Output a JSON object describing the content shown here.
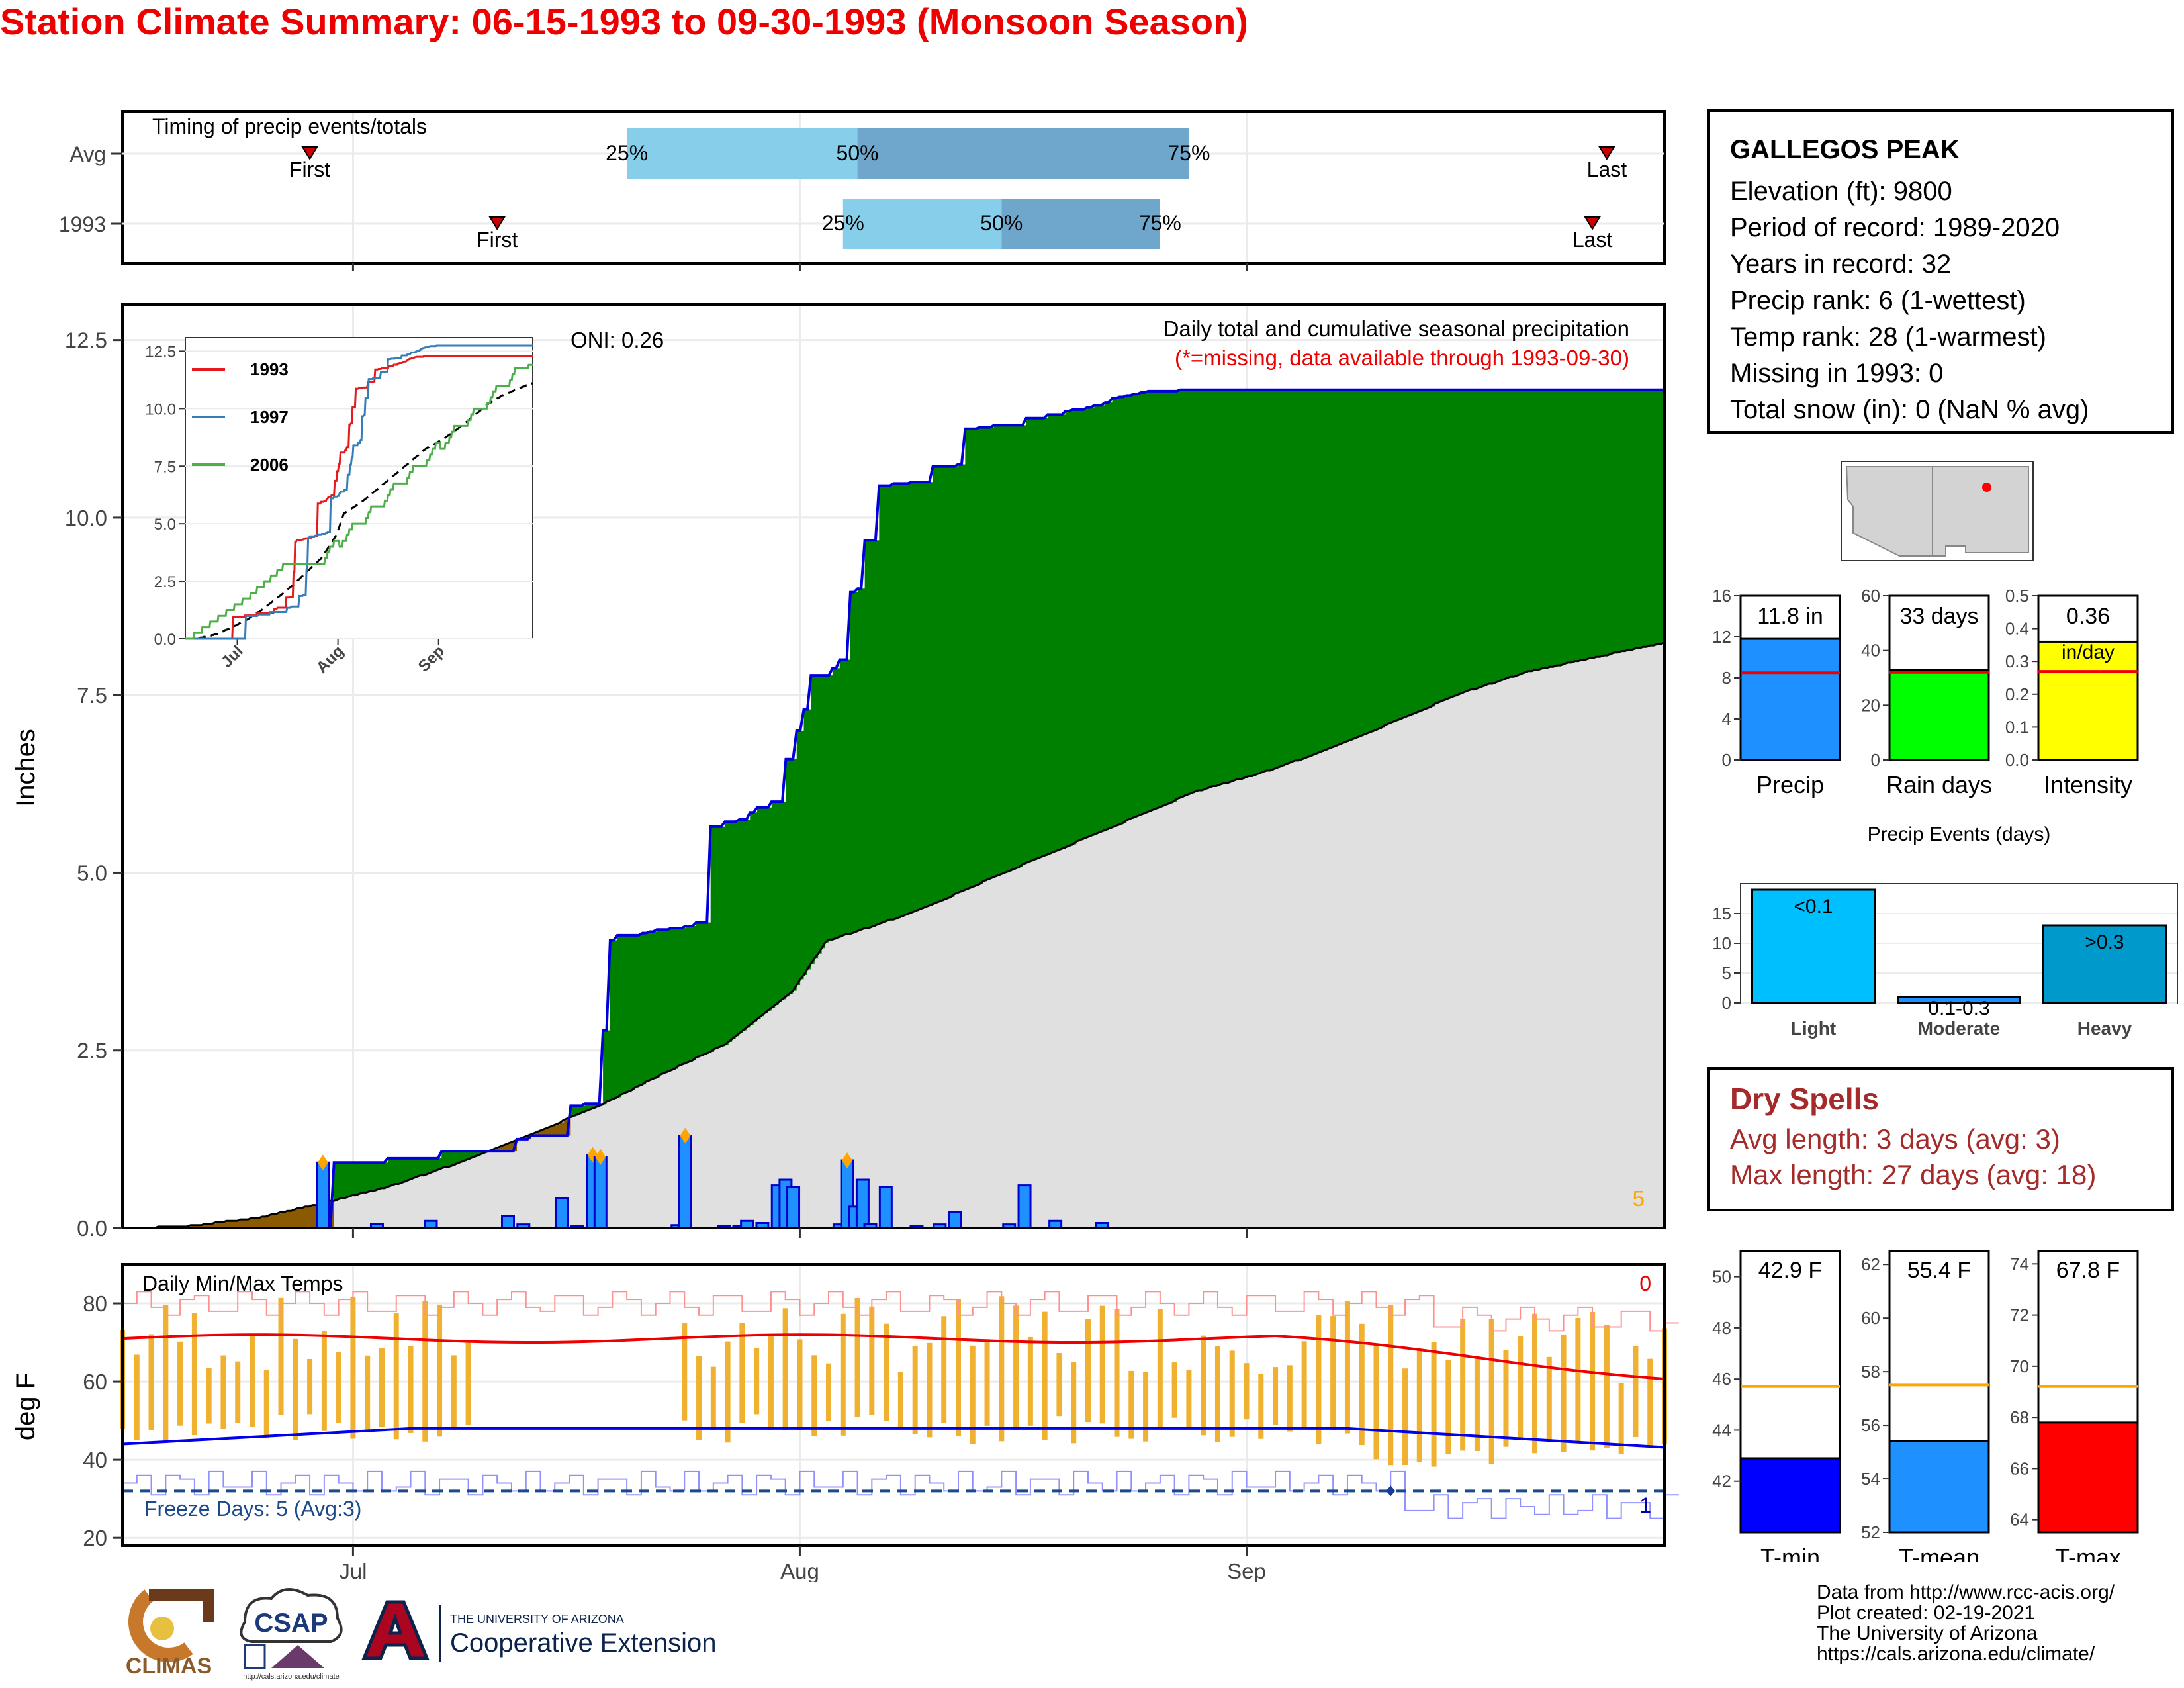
{
  "title": "Station Climate Summary: 06-15-1993 to 09-30-1993 (Monsoon Season)",
  "timing": {
    "label": "Timing of precip events/totals",
    "rows": [
      {
        "name": "Avg",
        "first_label": "First",
        "last_label": "Last",
        "p25": "25%",
        "p50": "50%",
        "p75": "75%",
        "first_date": "1993-06-28",
        "last_date": "1993-09-26",
        "q25_date": "1993-07-20",
        "q50_date": "1993-08-05",
        "q75_date": "1993-08-28"
      },
      {
        "name": "1993",
        "first_label": "First",
        "last_label": "Last",
        "p25": "25%",
        "p50": "50%",
        "p75": "75%",
        "first_date": "1993-07-11",
        "last_date": "1993-09-25",
        "q25_date": "1993-08-04",
        "q50_date": "1993-08-15",
        "q75_date": "1993-08-26"
      }
    ]
  },
  "main": {
    "ylabel": "Inches",
    "oni": "ONI: 0.26",
    "caption": "Daily total and cumulative seasonal precipitation",
    "missing_note": "(*=missing, data available through 1993-09-30)",
    "corner_value": "5",
    "y_ticks": [
      "0.0",
      "2.5",
      "5.0",
      "7.5",
      "10.0",
      "12.5"
    ],
    "x_ticks": [
      "Jul",
      "Aug",
      "Sep"
    ]
  },
  "temps": {
    "label": "Daily Min/Max Temps",
    "ylabel": "deg F",
    "freeze": "Freeze Days: 5 (Avg:3)",
    "corner_top": "0",
    "corner_bottom": "1",
    "y_ticks": [
      "20",
      "40",
      "60",
      "80"
    ],
    "x_ticks": [
      "Jul",
      "Aug",
      "Sep"
    ]
  },
  "inset": {
    "legend": [
      "1993",
      "1997",
      "2006"
    ],
    "y_ticks": [
      "0.0",
      "2.5",
      "5.0",
      "7.5",
      "10.0",
      "12.5"
    ],
    "x_ticks": [
      "Jul",
      "Aug",
      "Sep"
    ]
  },
  "station": {
    "name": "GALLEGOS PEAK",
    "lines": [
      "Elevation (ft): 9800",
      "Period of record: 1989-2020",
      "Years in record: 32",
      "Precip rank: 6 (1-wettest)",
      "Temp rank: 28 (1-warmest)",
      "Missing in 1993: 0",
      "Total snow (in): 0 (NaN % avg)"
    ]
  },
  "summary_bars": [
    {
      "name": "Precip",
      "label": "11.8 in",
      "value": 11.8,
      "avg": 8.5,
      "ymax": 16,
      "ticks": [
        "0",
        "4",
        "8",
        "12",
        "16"
      ],
      "color": "#1e90ff"
    },
    {
      "name": "Rain days",
      "label": "33 days",
      "value": 33,
      "avg": 32,
      "ymax": 60,
      "ticks": [
        "0",
        "20",
        "40",
        "60"
      ],
      "color": "#00ff00"
    },
    {
      "name": "Intensity",
      "label": "0.36",
      "label2": "in/day",
      "value": 0.36,
      "avg": 0.27,
      "ymax": 0.5,
      "ticks": [
        "0.0",
        "0.1",
        "0.2",
        "0.3",
        "0.4",
        "0.5"
      ],
      "color": "#ffff00"
    }
  ],
  "events": {
    "title": "Precip Events (days)",
    "categories": [
      "Light",
      "Moderate",
      "Heavy"
    ],
    "values": [
      19,
      1,
      13
    ],
    "labels": [
      "<0.1",
      "0.1-0.3",
      ">0.3"
    ],
    "colors": [
      "#00bfff",
      "#1e90ff",
      "#0099cc"
    ],
    "y_ticks": [
      "0",
      "5",
      "10",
      "15"
    ]
  },
  "dry": {
    "title": "Dry Spells",
    "avg": "Avg length: 3 days (avg: 3)",
    "max": "Max length: 27 days (avg: 18)"
  },
  "temp_bars": [
    {
      "name": "T-min",
      "label": "42.9 F",
      "value": 42.9,
      "avg": 45.7,
      "ymin": 40,
      "ymax": 51,
      "ticks": [
        "42",
        "44",
        "46",
        "48",
        "50"
      ],
      "color": "#0000ff"
    },
    {
      "name": "T-mean",
      "label": "55.4 F",
      "value": 55.4,
      "avg": 57.5,
      "ymin": 52,
      "ymax": 62.5,
      "ticks": [
        "52",
        "54",
        "56",
        "58",
        "60",
        "62"
      ],
      "color": "#1e90ff"
    },
    {
      "name": "T-max",
      "label": "67.8 F",
      "value": 67.8,
      "avg": 69.2,
      "ymin": 63.5,
      "ymax": 74.5,
      "ticks": [
        "64",
        "66",
        "68",
        "70",
        "72",
        "74"
      ],
      "color": "#ff0000"
    }
  ],
  "credits": [
    "Data from http://www.rcc-acis.org/",
    "Plot created: 02-19-2021",
    "The University of Arizona",
    "https://cals.arizona.edu/climate/"
  ],
  "logos": {
    "climas": "CLIMAS",
    "csap": "CSAP",
    "csap_url": "http://cals.arizona.edu/climate",
    "ua_small": "THE UNIVERSITY OF ARIZONA",
    "ua_big": "Cooperative Extension"
  },
  "chart_data": [
    {
      "type": "area",
      "title": "Daily total and cumulative seasonal precipitation",
      "ylabel": "Inches",
      "ylim": [
        0,
        13
      ],
      "x_range": [
        "1993-06-15",
        "1993-09-30"
      ],
      "series": [
        {
          "name": "1993",
          "cumulative": [
            [
              0,
              0
            ],
            [
              26,
              0
            ],
            [
              27,
              0.92
            ],
            [
              33,
              0.92
            ],
            [
              34,
              0.98
            ],
            [
              40,
              0.98
            ],
            [
              41,
              1.08
            ],
            [
              50,
              1.08
            ],
            [
              51,
              1.25
            ],
            [
              52,
              1.25
            ],
            [
              53,
              1.3
            ],
            [
              57,
              1.3
            ],
            [
              58,
              1.72
            ],
            [
              59,
              1.72
            ],
            [
              60,
              1.75
            ],
            [
              61,
              1.75
            ],
            [
              62,
              2.78
            ],
            [
              63,
              4.05
            ],
            [
              64,
              4.12
            ],
            [
              65,
              4.12
            ],
            [
              66,
              4.12
            ],
            [
              67,
              4.15
            ],
            [
              68,
              4.17
            ],
            [
              69,
              4.2
            ],
            [
              70,
              4.2
            ],
            [
              71,
              4.22
            ],
            [
              72,
              4.22
            ],
            [
              73,
              4.25
            ],
            [
              74,
              4.3
            ],
            [
              75,
              4.3
            ],
            [
              76,
              5.65
            ],
            [
              77,
              5.65
            ],
            [
              78,
              5.72
            ],
            [
              79,
              5.72
            ],
            [
              80,
              5.75
            ],
            [
              81,
              5.85
            ],
            [
              82,
              5.92
            ],
            [
              83,
              5.92
            ],
            [
              84,
              6.0
            ],
            [
              85,
              6.0
            ],
            [
              86,
              6.6
            ],
            [
              87,
              7.0
            ],
            [
              88,
              7.3
            ],
            [
              89,
              7.78
            ],
            [
              90,
              7.78
            ],
            [
              91,
              7.78
            ],
            [
              92,
              7.88
            ],
            [
              93,
              8.0
            ],
            [
              94,
              8.95
            ],
            [
              95,
              9.0
            ],
            [
              96,
              9.68
            ],
            [
              97,
              9.68
            ],
            [
              98,
              10.45
            ],
            [
              99,
              10.45
            ],
            [
              100,
              10.48
            ],
            [
              101,
              10.48
            ],
            [
              102,
              10.5
            ],
            [
              103,
              10.5
            ],
            [
              104,
              10.5
            ],
            [
              105,
              10.72
            ],
            [
              106,
              10.72
            ],
            [
              107,
              10.72
            ],
            [
              108,
              10.75
            ],
            [
              109,
              11.25
            ],
            [
              110,
              11.25
            ],
            [
              111,
              11.27
            ],
            [
              112,
              11.27
            ],
            [
              113,
              11.3
            ],
            [
              114,
              11.3
            ],
            [
              115,
              11.3
            ],
            [
              116,
              11.3
            ],
            [
              117,
              11.4
            ],
            [
              118,
              11.4
            ],
            [
              119,
              11.4
            ],
            [
              120,
              11.45
            ],
            [
              121,
              11.45
            ],
            [
              122,
              11.5
            ],
            [
              123,
              11.52
            ],
            [
              124,
              11.52
            ],
            [
              125,
              11.55
            ],
            [
              126,
              11.58
            ],
            [
              127,
              11.62
            ],
            [
              128,
              11.68
            ],
            [
              129,
              11.7
            ],
            [
              130,
              11.72
            ],
            [
              131,
              11.74
            ],
            [
              132,
              11.76
            ],
            [
              133,
              11.78
            ],
            [
              134,
              11.78
            ],
            [
              135,
              11.78
            ],
            [
              136,
              11.78
            ],
            [
              137,
              11.8
            ],
            [
              138,
              11.8
            ],
            [
              139,
              11.8
            ],
            [
              140,
              11.8
            ],
            [
              141,
              11.8
            ],
            [
              142,
              11.8
            ],
            [
              143,
              11.8
            ],
            [
              144,
              11.8
            ],
            [
              145,
              11.8
            ],
            [
              146,
              11.8
            ],
            [
              147,
              11.8
            ],
            [
              148,
              11.8
            ],
            [
              149,
              11.8
            ],
            [
              150,
              11.8
            ],
            [
              151,
              11.8
            ],
            [
              152,
              11.8
            ],
            [
              153,
              11.8
            ],
            [
              154,
              11.8
            ],
            [
              155,
              11.8
            ],
            [
              156,
              11.8
            ],
            [
              157,
              11.8
            ],
            [
              158,
              11.8
            ],
            [
              159,
              11.8
            ],
            [
              160,
              11.8
            ],
            [
              161,
              11.8
            ],
            [
              162,
              11.8
            ],
            [
              163,
              11.8
            ],
            [
              164,
              11.8
            ],
            [
              165,
              11.8
            ],
            [
              166,
              11.8
            ],
            [
              167,
              11.8
            ],
            [
              168,
              11.8
            ],
            [
              169,
              11.8
            ],
            [
              170,
              11.8
            ],
            [
              171,
              11.8
            ],
            [
              172,
              11.8
            ],
            [
              173,
              11.8
            ],
            [
              174,
              11.8
            ],
            [
              175,
              11.8
            ],
            [
              176,
              11.8
            ],
            [
              177,
              11.8
            ],
            [
              178,
              11.8
            ],
            [
              179,
              11.8
            ],
            [
              180,
              11.8
            ],
            [
              181,
              11.8
            ],
            [
              182,
              11.8
            ],
            [
              183,
              11.8
            ],
            [
              184,
              11.8
            ],
            [
              185,
              11.8
            ],
            [
              186,
              11.8
            ],
            [
              187,
              11.8
            ],
            [
              188,
              11.8
            ],
            [
              189,
              11.8
            ],
            [
              190,
              11.8
            ],
            [
              191,
              11.8
            ],
            [
              192,
              11.8
            ],
            [
              193,
              11.8
            ],
            [
              194,
              11.8
            ],
            [
              195,
              11.8
            ],
            [
              196,
              11.8
            ],
            [
              197,
              11.8
            ],
            [
              198,
              11.8
            ],
            [
              199,
              11.8
            ],
            [
              200,
              11.8
            ]
          ]
        },
        {
          "name": "Average",
          "cumulative": [
            [
              0,
              0
            ],
            [
              6,
              0.04
            ],
            [
              12,
              0.15
            ],
            [
              18,
              0.36
            ],
            [
              24,
              0.6
            ],
            [
              30,
              0.92
            ],
            [
              36,
              1.3
            ],
            [
              42,
              1.68
            ],
            [
              48,
              2.15
            ],
            [
              54,
              2.6
            ],
            [
              60,
              3.35
            ],
            [
              63,
              4.05
            ],
            [
              68,
              4.3
            ],
            [
              73,
              4.6
            ],
            [
              78,
              4.95
            ],
            [
              84,
              5.35
            ],
            [
              90,
              5.75
            ],
            [
              96,
              6.15
            ],
            [
              102,
              6.42
            ],
            [
              108,
              6.75
            ],
            [
              114,
              7.15
            ],
            [
              120,
              7.55
            ],
            [
              126,
              7.85
            ],
            [
              132,
              8.05
            ],
            [
              138,
              8.25
            ]
          ]
        }
      ],
      "daily_bars": [
        [
          26,
          0.92
        ],
        [
          33,
          0.06
        ],
        [
          40,
          0.1
        ],
        [
          50,
          0.17
        ],
        [
          52,
          0.05
        ],
        [
          57,
          0.42
        ],
        [
          59,
          0.03
        ],
        [
          61,
          1.03
        ],
        [
          62,
          1.0
        ],
        [
          72,
          0.04
        ],
        [
          73,
          1.3
        ],
        [
          78,
          0.03
        ],
        [
          80,
          0.03
        ],
        [
          81,
          0.1
        ],
        [
          83,
          0.07
        ],
        [
          85,
          0.6
        ],
        [
          86,
          0.68
        ],
        [
          87,
          0.58
        ],
        [
          93,
          0.05
        ],
        [
          94,
          0.95
        ],
        [
          95,
          0.3
        ],
        [
          96,
          0.68
        ],
        [
          97,
          0.06
        ],
        [
          99,
          0.58
        ],
        [
          103,
          0.03
        ],
        [
          106,
          0.05
        ],
        [
          108,
          0.22
        ],
        [
          115,
          0.05
        ],
        [
          117,
          0.6
        ],
        [
          121,
          0.1
        ],
        [
          127,
          0.07
        ]
      ]
    },
    {
      "type": "line",
      "title": "Daily Min/Max Temps",
      "ylabel": "deg F",
      "ylim": [
        18,
        90
      ],
      "freeze_line": 32
    }
  ]
}
